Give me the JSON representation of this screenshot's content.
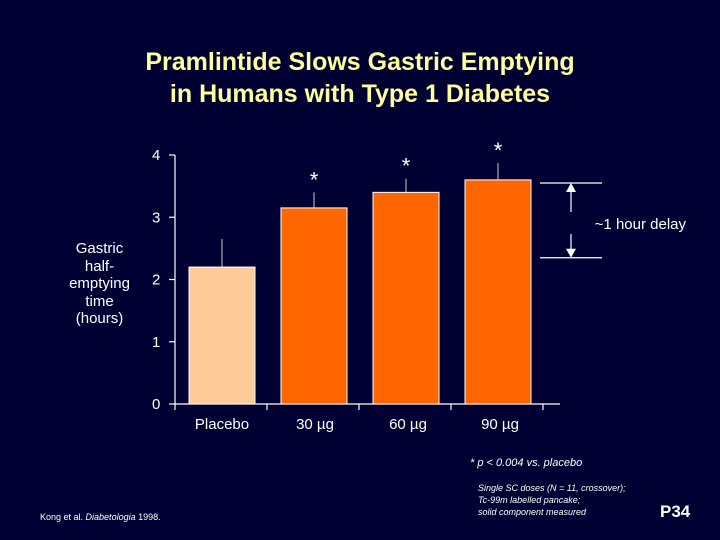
{
  "title_line1": "Pramlintide Slows Gastric Emptying",
  "title_line2": "in Humans with Type 1 Diabetes",
  "ylabel_lines": [
    "Gastric",
    "half-",
    "emptying",
    "time",
    "(hours)"
  ],
  "chart_data": {
    "type": "bar",
    "categories": [
      "Placebo",
      "30 µg",
      "60 µg",
      "90 µg"
    ],
    "values": [
      2.2,
      3.15,
      3.4,
      3.6
    ],
    "error_upper": [
      2.65,
      3.4,
      3.62,
      3.87
    ],
    "significance": [
      "",
      "*",
      "*",
      "*"
    ],
    "ylim": [
      0,
      4
    ],
    "yticks": [
      "0",
      "1",
      "2",
      "3",
      "4"
    ],
    "bar_colors": [
      "#ffcc99",
      "#ff6600",
      "#ff6600",
      "#ff6600"
    ],
    "bracket_label": "~1 hour delay",
    "bracket_range": [
      2.35,
      3.55
    ]
  },
  "footnote": "* p < 0.004 vs. placebo",
  "method_lines": [
    "Single SC doses (N = 11, crossover);",
    "Tc-99m labelled pancake;",
    "solid component measured"
  ],
  "reference_authors": "Kong et al. ",
  "reference_journal": "Diabetologia",
  "reference_year": " 1998.",
  "slide_code": "P34"
}
